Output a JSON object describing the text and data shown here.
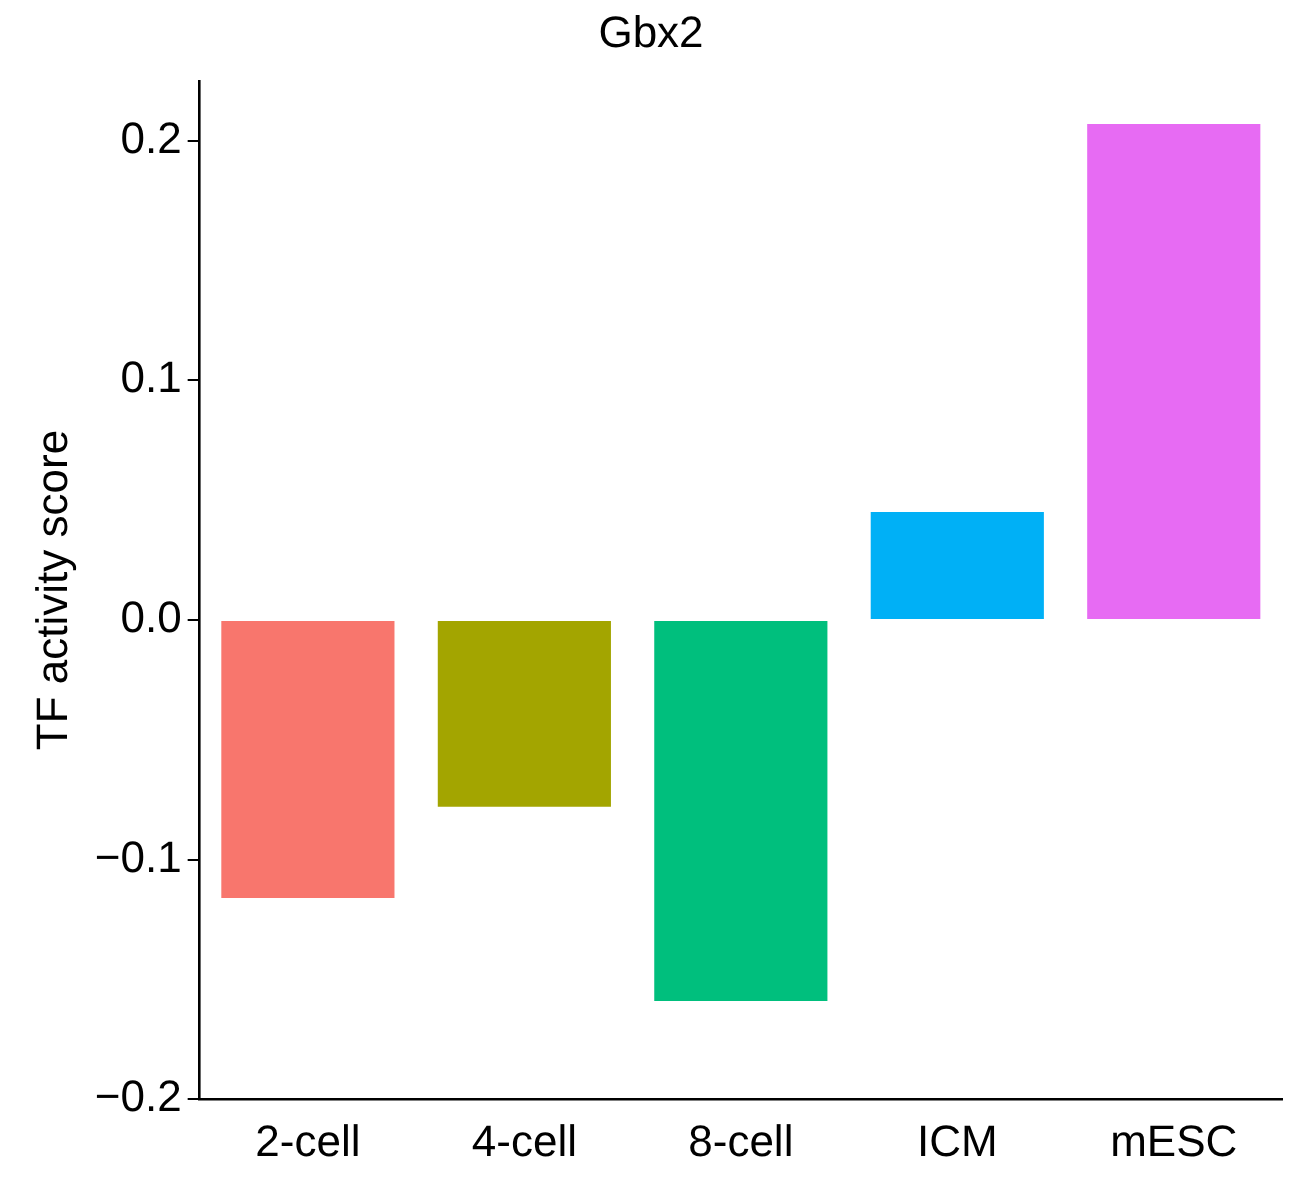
{
  "chart_data": {
    "type": "bar",
    "title": "Gbx2",
    "ylabel": "TF activity score",
    "categories": [
      "2-cell",
      "4-cell",
      "8-cell",
      "ICM",
      "mESC"
    ],
    "values": [
      -0.116,
      -0.078,
      -0.159,
      0.045,
      0.207
    ],
    "colors": [
      "#f8766d",
      "#a3a500",
      "#00bf7d",
      "#00b0f6",
      "#e76bf3"
    ],
    "ylim": [
      -0.2,
      0.225
    ],
    "yticks": [
      {
        "value": -0.2,
        "label": "−0.2"
      },
      {
        "value": -0.1,
        "label": "−0.1"
      },
      {
        "value": 0,
        "label": "0.0"
      },
      {
        "value": 0.1,
        "label": "0.1"
      },
      {
        "value": 0.2,
        "label": "0.2"
      }
    ],
    "grid": false,
    "legend": false
  }
}
